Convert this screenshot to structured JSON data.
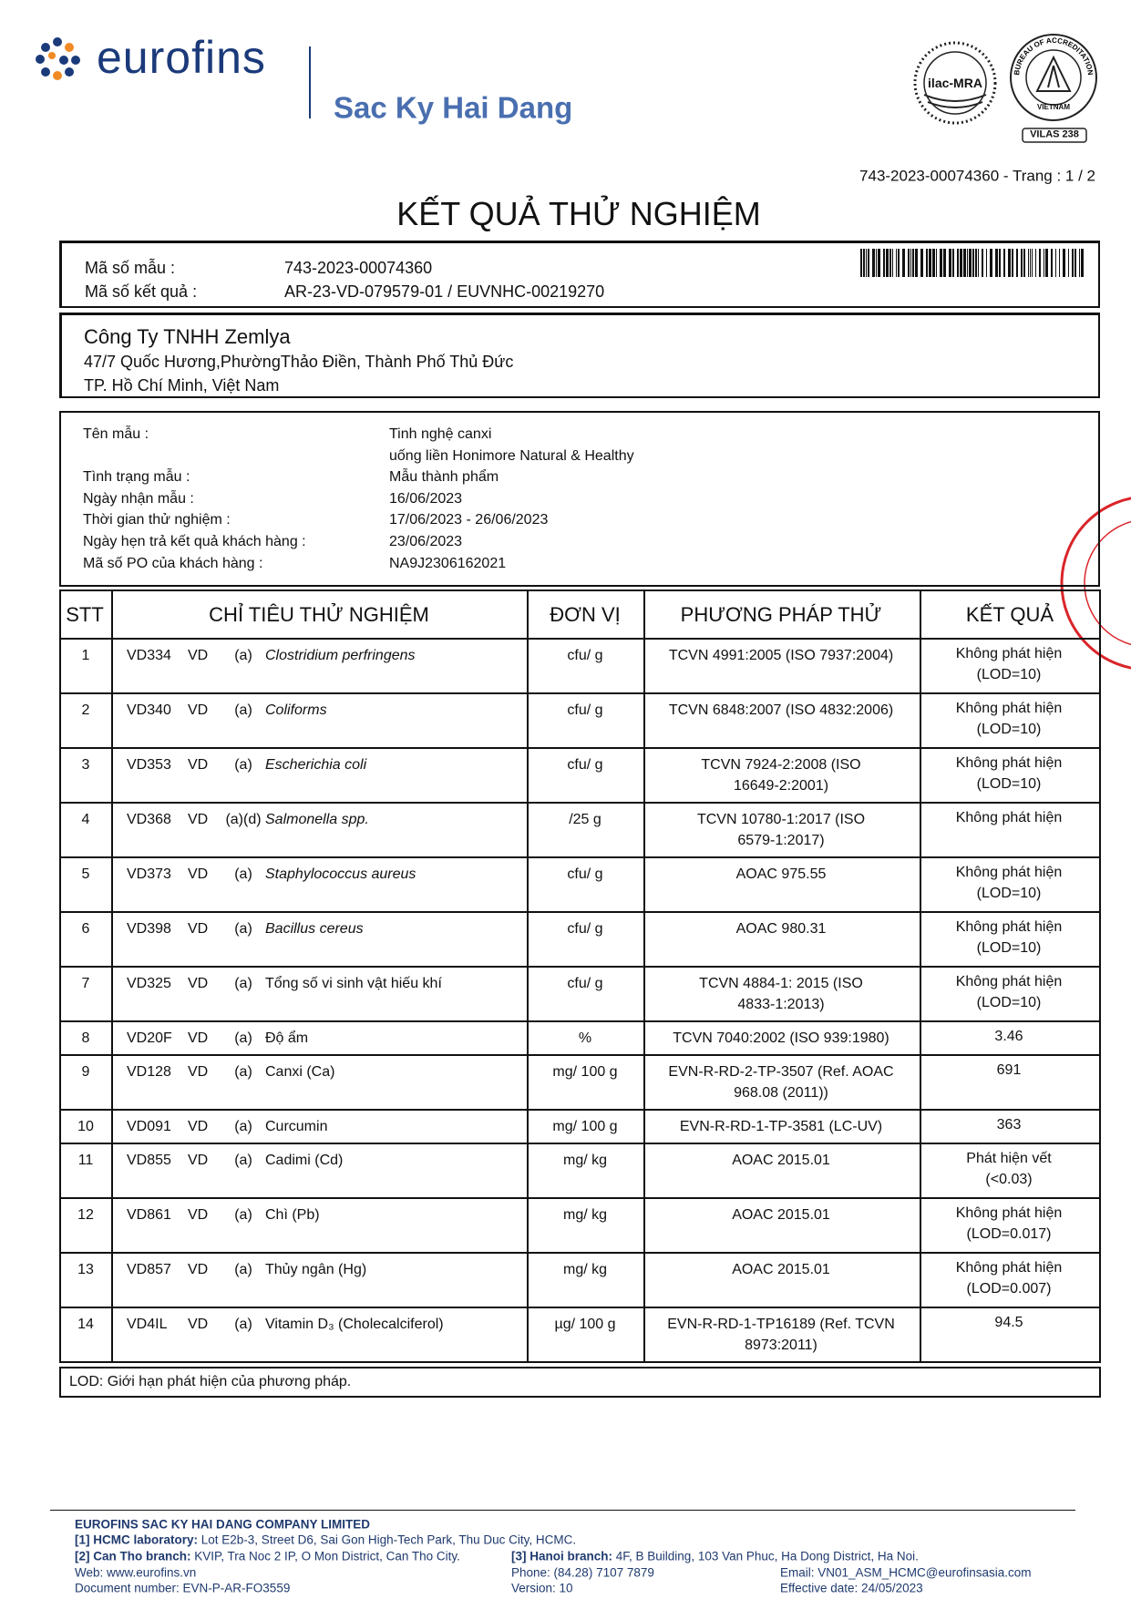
{
  "header": {
    "brand": "eurofins",
    "subtitle": "Sac Ky Hai Dang",
    "ilac": "ilac-MRA",
    "bureau": "BUREAU OF ACCREDITATION",
    "country": "VIETNAM",
    "vilas": "VILAS 238"
  },
  "report_ref": "743-2023-00074360 - Trang : 1 / 2",
  "title": "KẾT QUẢ THỬ NGHIỆM",
  "ids": [
    {
      "label": "Mã số mẫu :",
      "value": "743-2023-00074360"
    },
    {
      "label": "Mã số kết quả :",
      "value": "AR-23-VD-079579-01 / EUVNHC-00219270"
    }
  ],
  "customer": {
    "name": "Công Ty TNHH Zemlya",
    "address": [
      "47/7 Quốc Hương,PhườngThảo Điền, Thành Phố Thủ Đức",
      "TP. Hồ Chí Minh, Việt Nam"
    ]
  },
  "info": [
    {
      "label": "Tên mẫu :",
      "value": [
        "Tinh nghệ canxi",
        " uống liền Honimore Natural & Healthy"
      ]
    },
    {
      "label": "Tình trạng mẫu :",
      "value": [
        "Mẫu thành phẩm"
      ]
    },
    {
      "label": "Ngày nhận mẫu :",
      "value": [
        "16/06/2023"
      ]
    },
    {
      "label": "Thời gian thử nghiệm :",
      "value": [
        "17/06/2023 - 26/06/2023"
      ]
    },
    {
      "label": "Ngày hẹn trả kết quả khách hàng :",
      "value": [
        "23/06/2023"
      ]
    },
    {
      "label": "Mã số PO của khách hàng :",
      "value": [
        "NA9J2306162021"
      ]
    }
  ],
  "table": {
    "columns": [
      "STT",
      "CHỈ TIÊU THỬ NGHIỆM",
      "ĐƠN VỊ",
      "PHƯƠNG PHÁP THỬ",
      "KẾT QUẢ"
    ],
    "rows": [
      {
        "stt": "1",
        "code": "VD334",
        "lab": "VD",
        "note": "(a)",
        "name": "Clostridium perfringens",
        "italic": true,
        "unit": "cfu/ g",
        "method": [
          "TCVN 4991:2005 (ISO 7937:2004)"
        ],
        "result": [
          "Không phát hiện",
          "(LOD=10)"
        ]
      },
      {
        "stt": "2",
        "code": "VD340",
        "lab": "VD",
        "note": "(a)",
        "name": "Coliforms",
        "italic": true,
        "unit": "cfu/ g",
        "method": [
          "TCVN 6848:2007 (ISO 4832:2006)"
        ],
        "result": [
          "Không phát hiện",
          "(LOD=10)"
        ]
      },
      {
        "stt": "3",
        "code": "VD353",
        "lab": "VD",
        "note": "(a)",
        "name": "Escherichia coli",
        "italic": true,
        "unit": "cfu/ g",
        "method": [
          "TCVN 7924-2:2008 (ISO",
          "16649-2:2001)"
        ],
        "result": [
          "Không phát hiện",
          "(LOD=10)"
        ]
      },
      {
        "stt": "4",
        "code": "VD368",
        "lab": "VD",
        "note": "(a)(d)",
        "name": "Salmonella spp.",
        "italic": true,
        "unit": "/25 g",
        "method": [
          "TCVN 10780-1:2017 (ISO",
          "6579-1:2017)"
        ],
        "result": [
          "Không phát hiện"
        ]
      },
      {
        "stt": "5",
        "code": "VD373",
        "lab": "VD",
        "note": "(a)",
        "name": "Staphylococcus aureus",
        "italic": true,
        "unit": "cfu/ g",
        "method": [
          "AOAC 975.55"
        ],
        "result": [
          "Không phát hiện",
          "(LOD=10)"
        ]
      },
      {
        "stt": "6",
        "code": "VD398",
        "lab": "VD",
        "note": "(a)",
        "name": "Bacillus cereus",
        "italic": true,
        "unit": "cfu/ g",
        "method": [
          "AOAC 980.31"
        ],
        "result": [
          "Không phát hiện",
          "(LOD=10)"
        ]
      },
      {
        "stt": "7",
        "code": "VD325",
        "lab": "VD",
        "note": "(a)",
        "name": "Tổng số vi sinh vật hiếu khí",
        "italic": false,
        "unit": "cfu/ g",
        "method": [
          "TCVN 4884-1: 2015 (ISO",
          "4833-1:2013)"
        ],
        "result": [
          "Không phát hiện",
          "(LOD=10)"
        ]
      },
      {
        "stt": "8",
        "code": "VD20F",
        "lab": "VD",
        "note": "(a)",
        "name": "Độ ẩm",
        "italic": false,
        "unit": "%",
        "method": [
          "TCVN 7040:2002 (ISO 939:1980)"
        ],
        "result": [
          "3.46"
        ]
      },
      {
        "stt": "9",
        "code": "VD128",
        "lab": "VD",
        "note": "(a)",
        "name": "Canxi (Ca)",
        "italic": false,
        "unit": "mg/ 100 g",
        "method": [
          "EVN-R-RD-2-TP-3507 (Ref. AOAC",
          "968.08 (2011))"
        ],
        "result": [
          "691"
        ]
      },
      {
        "stt": "10",
        "code": "VD091",
        "lab": "VD",
        "note": "(a)",
        "name": "Curcumin",
        "italic": false,
        "unit": "mg/ 100 g",
        "method": [
          "EVN-R-RD-1-TP-3581 (LC-UV)"
        ],
        "result": [
          "363"
        ]
      },
      {
        "stt": "11",
        "code": "VD855",
        "lab": "VD",
        "note": "(a)",
        "name": "Cadimi (Cd)",
        "italic": false,
        "unit": "mg/ kg",
        "method": [
          "AOAC 2015.01"
        ],
        "result": [
          "Phát hiện vết",
          "(<0.03)"
        ]
      },
      {
        "stt": "12",
        "code": "VD861",
        "lab": "VD",
        "note": "(a)",
        "name": "Chì (Pb)",
        "italic": false,
        "unit": "mg/ kg",
        "method": [
          "AOAC 2015.01"
        ],
        "result": [
          "Không phát hiện",
          "(LOD=0.017)"
        ]
      },
      {
        "stt": "13",
        "code": "VD857",
        "lab": "VD",
        "note": "(a)",
        "name": "Thủy ngân (Hg)",
        "italic": false,
        "unit": "mg/ kg",
        "method": [
          "AOAC 2015.01"
        ],
        "result": [
          "Không phát hiện",
          "(LOD=0.007)"
        ]
      },
      {
        "stt": "14",
        "code": "VD4IL",
        "lab": "VD",
        "note": "(a)",
        "name": "Vitamin D₃ (Cholecalciferol)",
        "italic": false,
        "unit": "µg/ 100 g",
        "method": [
          "EVN-R-RD-1-TP16189 (Ref. TCVN",
          "8973:2011)"
        ],
        "result": [
          "94.5"
        ]
      }
    ]
  },
  "note": "LOD: Giới hạn phát hiện của phương pháp.",
  "footer": {
    "company": "EUROFINS SAC KY HAI DANG COMPANY LIMITED",
    "hcmc": {
      "label": "[1] HCMC laboratory:",
      "text": " Lot E2b-3, Street D6, Sai Gon High-Tech Park, Thu Duc City, HCMC."
    },
    "cantho": {
      "label": "[2] Can Tho branch:",
      "text": " KVIP, Tra Noc 2 IP, O Mon District, Can Tho City."
    },
    "hanoi": {
      "label": "[3] Hanoi branch:",
      "text": " 4F, B Building, 103 Van Phuc, Ha Dong District, Ha Noi."
    },
    "web": "Web: www.eurofins.vn",
    "phone": "Phone: (84.28) 7107 7879",
    "email": "Email: VN01_ASM_HCMC@eurofinsasia.com",
    "document": "Document number: EVN-P-AR-FO3559",
    "version": "Version: 10",
    "effective": "Effective date: 24/05/2023"
  }
}
